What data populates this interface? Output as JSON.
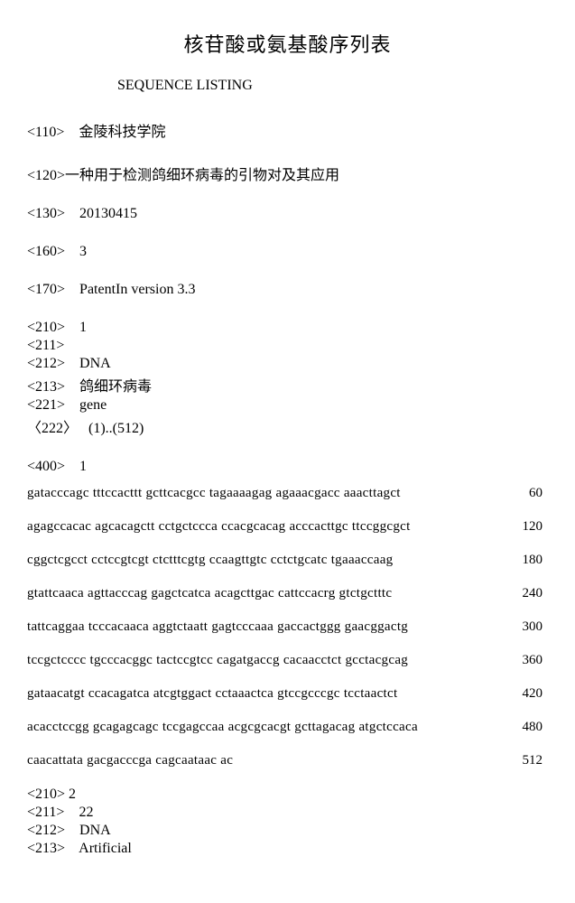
{
  "title": "核苷酸或氨基酸序列表",
  "subtitle": "SEQUENCE LISTING",
  "entries": {
    "e110": "<110>    金陵科技学院",
    "e120": "<120>一种用于检测鸽细环病毒的引物对及其应用",
    "e130": "<130>    20130415",
    "e160": "<160>    3",
    "e170": "<170>    PatentIn version 3.3"
  },
  "seq1header": {
    "e210": "<210>    1",
    "e211": "<211>",
    "e212": "<212>    DNA",
    "e213": "<213>    鸽细环病毒",
    "e221": "<221>    gene",
    "e222": "〈222〉   (1)..(512)"
  },
  "seq1start": "<400>    1",
  "seq1rows": [
    {
      "text": "gatacccagc tttccacttt gcttcacgcc tagaaaagag agaaacgacc aaacttagct",
      "num": "60"
    },
    {
      "text": "agagccacac agcacagctt cctgctccca ccacgcacag acccacttgc ttccggcgct",
      "num": "120"
    },
    {
      "text": "cggctcgcct cctccgtcgt ctctttcgtg ccaagttgtc cctctgcatc tgaaaccaag",
      "num": "180"
    },
    {
      "text": "gtattcaaca agttacccag gagctcatca acagcttgac cattccacrg gtctgctttc",
      "num": "240"
    },
    {
      "text": "tattcaggaa tcccacaaca aggtctaatt gagtcccaaa gaccactggg gaacggactg",
      "num": "300"
    },
    {
      "text": "tccgctcccc tgcccacggc tactccgtcc cagatgaccg cacaacctct gcctacgcag",
      "num": "360"
    },
    {
      "text": "gataacatgt ccacagatca atcgtggact cctaaactca gtccgcccgc tcctaactct",
      "num": "420"
    },
    {
      "text": "acacctccgg gcagagcagc tccgagccaa acgcgcacgt gcttagacag atgctccaca",
      "num": "480"
    },
    {
      "text": "caacattata gacgacccga cagcaataac ac",
      "num": "512"
    }
  ],
  "seq2header": {
    "e210": "<210> 2",
    "e211": "<211>    22",
    "e212": "<212>    DNA",
    "e213": "<213>    Artificial"
  }
}
